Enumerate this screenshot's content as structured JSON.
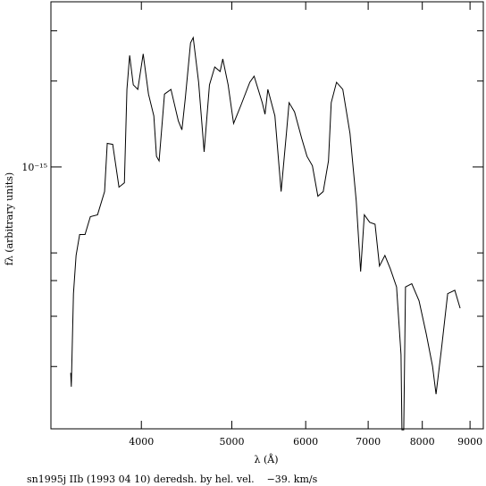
{
  "chart_data": {
    "type": "line",
    "xlabel": "λ (Å)",
    "ylabel": "fλ (arbitrary units)",
    "caption": "sn1995j IIb (1993 04 10) deredsh. by hel. vel.    −39. km/s",
    "xlog": true,
    "ylog": true,
    "xlim": [
      3200,
      9300
    ],
    "ylim": [
      1.21e-16,
      3.79e-15
    ],
    "xticks": [
      4000,
      5000,
      6000,
      7000,
      8000,
      9000
    ],
    "yticks": [
      {
        "value": 1e-15,
        "label": "10⁻¹⁵"
      }
    ],
    "yminorticks": [
      2e-16,
      3e-16,
      4e-16,
      5e-16,
      2e-15,
      3e-15
    ],
    "series": [
      {
        "color": "#000000",
        "x": [
          3360,
          3365,
          3383,
          3405,
          3435,
          3481,
          3527,
          3590,
          3653,
          3677,
          3727,
          3785,
          3836,
          3860,
          3886,
          3921,
          3965,
          4018,
          4071,
          4125,
          4152,
          4179,
          4235,
          4303,
          4382,
          4421,
          4458,
          4516,
          4546,
          4607,
          4670,
          4732,
          4794,
          4858,
          4890,
          4955,
          5022,
          5112,
          5227,
          5283,
          5390,
          5427,
          5465,
          5561,
          5647,
          5721,
          5759,
          5837,
          5941,
          6019,
          6100,
          6183,
          6265,
          6347,
          6390,
          6474,
          6575,
          6693,
          6797,
          6871,
          6934,
          7026,
          7120,
          7198,
          7295,
          7393,
          7508,
          7591,
          7608,
          7642,
          7675,
          7795,
          7936,
          8079,
          8206,
          8276,
          8387,
          8517,
          8668,
          8783
        ],
        "values": [
          1.9e-16,
          1.7e-16,
          3.6e-16,
          4.9e-16,
          5.8e-16,
          5.8e-16,
          6.7e-16,
          6.8e-16,
          8.2e-16,
          1.21e-15,
          1.2e-15,
          8.5e-16,
          8.8e-16,
          1.87e-15,
          2.46e-15,
          1.94e-15,
          1.87e-15,
          2.49e-15,
          1.8e-15,
          1.51e-15,
          1.09e-15,
          1.05e-15,
          1.8e-15,
          1.87e-15,
          1.45e-15,
          1.35e-15,
          1.74e-15,
          2.72e-15,
          2.84e-15,
          1.98e-15,
          1.13e-15,
          1.94e-15,
          2.24e-15,
          2.16e-15,
          2.39e-15,
          1.94e-15,
          1.42e-15,
          1.64e-15,
          1.98e-15,
          2.08e-15,
          1.68e-15,
          1.53e-15,
          1.87e-15,
          1.51e-15,
          8.2e-16,
          1.31e-15,
          1.68e-15,
          1.56e-15,
          1.26e-15,
          1.09e-15,
          1.01e-15,
          7.9e-16,
          8.2e-16,
          1.05e-15,
          1.68e-15,
          1.98e-15,
          1.87e-15,
          1.31e-15,
          7.6e-16,
          4.3e-16,
          6.8e-16,
          6.4e-16,
          6.3e-16,
          4.5e-16,
          4.9e-16,
          4.4e-16,
          3.8e-16,
          2.2e-16,
          1.2e-16,
          1.2e-16,
          3.8e-16,
          3.9e-16,
          3.4e-16,
          2.6e-16,
          2e-16,
          1.6e-16,
          2.3e-16,
          3.6e-16,
          3.7e-16,
          3.2e-16
        ]
      }
    ]
  }
}
